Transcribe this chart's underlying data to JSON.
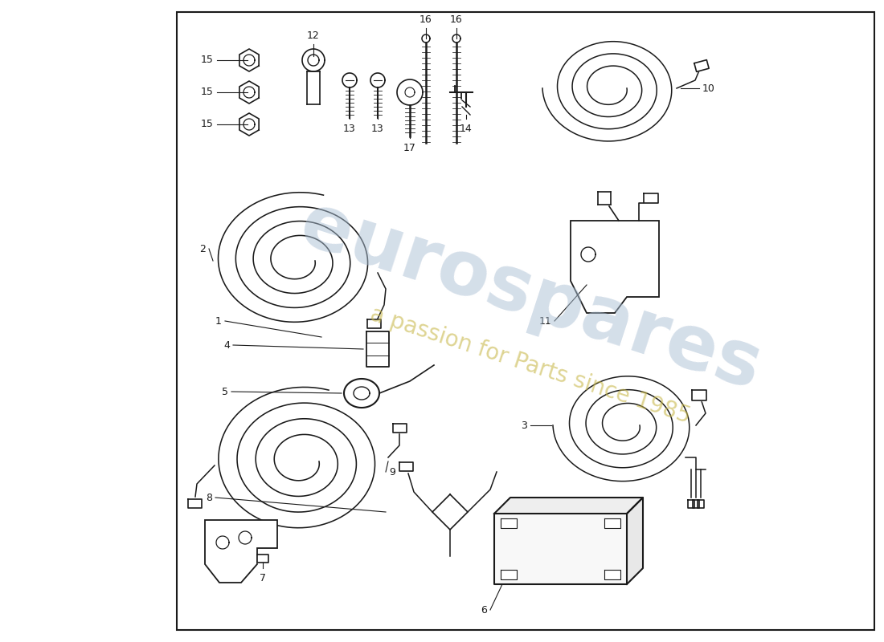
{
  "bg_color": "#ffffff",
  "border_color": "#1a1a1a",
  "line_color": "#1a1a1a",
  "text_color": "#1a1a1a",
  "fig_width": 11.0,
  "fig_height": 8.0,
  "dpi": 100,
  "border": [
    220,
    15,
    870,
    785
  ],
  "watermark1": "eurospares",
  "watermark2": "a passion for Parts since 1985",
  "wm_color1": "#aabfd4",
  "wm_color2": "#c8b84a"
}
